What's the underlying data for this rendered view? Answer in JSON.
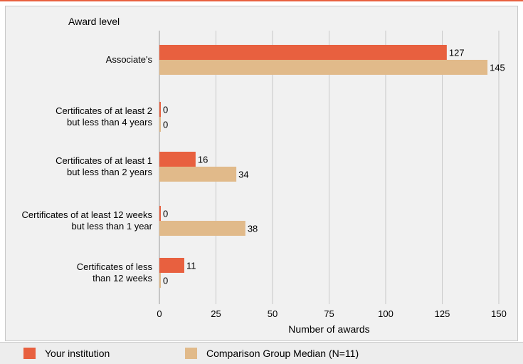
{
  "chart_data": {
    "type": "bar",
    "orientation": "horizontal",
    "title": "Award level",
    "xlabel": "Number of awards",
    "xlim": [
      0,
      150
    ],
    "xticks": [
      0,
      25,
      50,
      75,
      100,
      125,
      150
    ],
    "grid": true,
    "categories": [
      [
        "Associate's"
      ],
      [
        "Certificates of at least 2",
        "but less than 4 years"
      ],
      [
        "Certificates of at least 1",
        "but  less than 2 years"
      ],
      [
        "Certificates of at least 12 weeks",
        "but less than 1 year"
      ],
      [
        "Certificates of less",
        "than 12 weeks"
      ]
    ],
    "series": [
      {
        "name": "Your institution",
        "color": "#e8603f",
        "values": [
          127,
          0,
          16,
          0,
          11
        ]
      },
      {
        "name": "Comparison Group Median (N=11)",
        "color": "#e1ba8a",
        "values": [
          145,
          0,
          34,
          38,
          0
        ]
      }
    ],
    "legend_position": "bottom"
  }
}
